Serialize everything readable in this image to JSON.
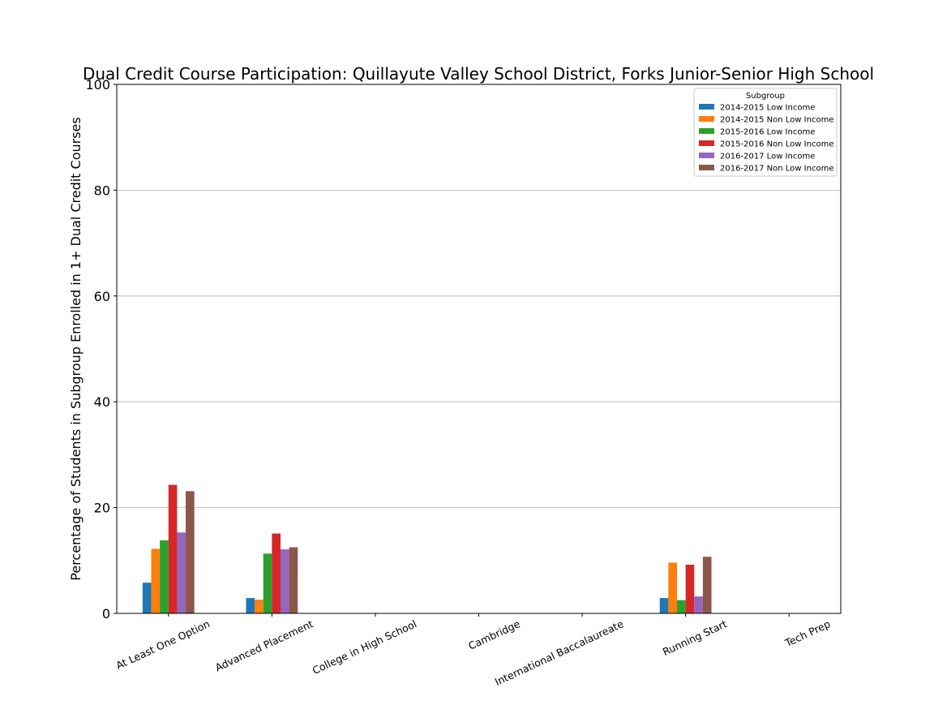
{
  "chart_data": {
    "type": "bar",
    "title": "Dual Credit Course Participation: Quillayute Valley School District, Forks Junior-Senior High School",
    "xlabel": "",
    "ylabel": "Percentage of Students in Subgroup Enrolled in 1+ Dual Credit Courses",
    "ylim": [
      0,
      100
    ],
    "yticks": [
      0,
      20,
      40,
      60,
      80,
      100
    ],
    "grid": "y",
    "legend_title": "Subgroup",
    "legend_position": "top-right",
    "categories": [
      "At Least One Option",
      "Advanced Placement",
      "College in High School",
      "Cambridge",
      "International Baccalaureate",
      "Running Start",
      "Tech Prep"
    ],
    "series": [
      {
        "name": "2014-2015 Low Income",
        "color": "#1f77b4",
        "values": [
          5.8,
          2.9,
          0,
          0,
          0,
          2.9,
          0
        ]
      },
      {
        "name": "2014-2015 Non Low Income",
        "color": "#ff7f0e",
        "values": [
          12.2,
          2.6,
          0,
          0,
          0,
          9.6,
          0
        ]
      },
      {
        "name": "2015-2016 Low Income",
        "color": "#2ca02c",
        "values": [
          13.8,
          11.3,
          0,
          0,
          0,
          2.5,
          0
        ]
      },
      {
        "name": "2015-2016 Non Low Income",
        "color": "#d62728",
        "values": [
          24.3,
          15.1,
          0,
          0,
          0,
          9.2,
          0
        ]
      },
      {
        "name": "2016-2017 Low Income",
        "color": "#9467bd",
        "values": [
          15.3,
          12.1,
          0,
          0,
          0,
          3.2,
          0
        ]
      },
      {
        "name": "2016-2017 Non Low Income",
        "color": "#8c564b",
        "values": [
          23.1,
          12.5,
          0,
          0,
          0,
          10.7,
          0
        ]
      }
    ]
  }
}
